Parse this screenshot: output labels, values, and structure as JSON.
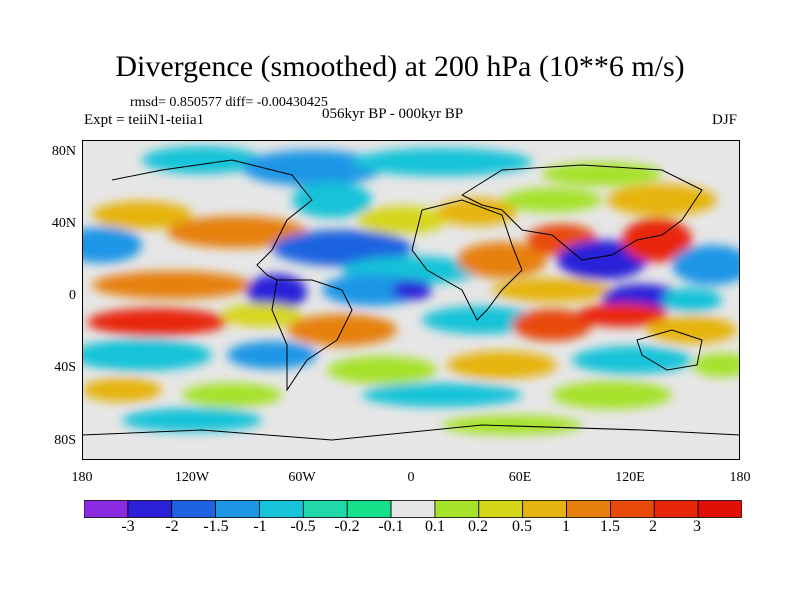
{
  "title": "Divergence (smoothed) at 200 hPa (10**6 m/s)",
  "stats": "rmsd= 0.850577  diff= -0.00430425",
  "experiment": "Expt = teiiN1-teiia1",
  "period": "056kyr BP - 000kyr BP",
  "season": "DJF",
  "lat_labels": [
    "80N",
    "40N",
    "0",
    "40S",
    "80S"
  ],
  "lon_labels": [
    "180",
    "120W",
    "60W",
    "0",
    "60E",
    "120E",
    "180"
  ],
  "colorbar": {
    "labels": [
      "-3",
      "-2",
      "-1.5",
      "-1",
      "-0.5",
      "-0.2",
      "-0.1",
      "0.1",
      "0.2",
      "0.5",
      "1",
      "1.5",
      "2",
      "3"
    ],
    "colors": [
      "#8a2be2",
      "#2b20d8",
      "#1f63e0",
      "#1e96e6",
      "#17c3d8",
      "#20d8a8",
      "#17e08a",
      "#e6e6e6",
      "#a6e22a",
      "#d6d61a",
      "#e6b40e",
      "#e6800a",
      "#e84a0a",
      "#e8260a",
      "#e01008"
    ]
  },
  "colors": {
    "land_outline": "#000000",
    "no_change": "#e6e6e6"
  }
}
